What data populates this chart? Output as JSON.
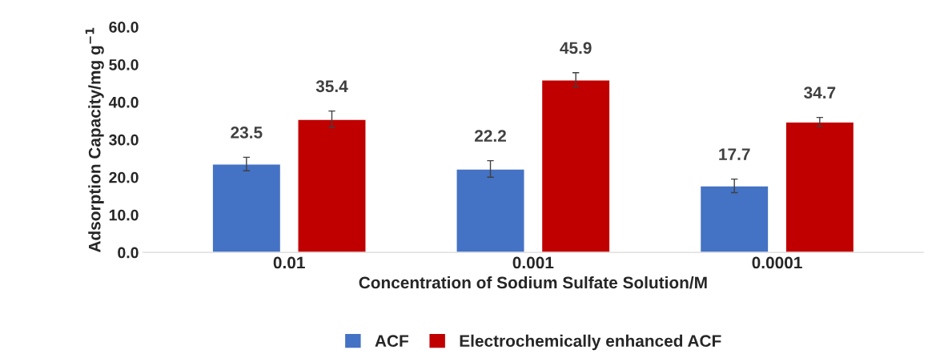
{
  "chart_data": {
    "type": "bar",
    "xlabel": "Concentration of Sodium Sulfate Solution/M",
    "ylabel": "Adsorption Capacity/mg g$^{−1}$",
    "categories": [
      "0.01",
      "0.001",
      "0.0001"
    ],
    "series": [
      {
        "name": "ACF",
        "color": "#4472c4",
        "values": [
          23.5,
          22.2,
          17.7
        ],
        "errors": [
          1.8,
          2.2,
          1.8
        ]
      },
      {
        "name": "Electrochemically enhanced ACF",
        "color": "#c00000",
        "values": [
          35.4,
          45.9,
          34.7
        ],
        "errors": [
          2.2,
          1.9,
          1.2
        ]
      }
    ],
    "ylim": [
      0,
      60
    ],
    "yticks": [
      {
        "value": 0,
        "label": "0.0"
      },
      {
        "value": 10,
        "label": "10.0"
      },
      {
        "value": 20,
        "label": "20.0"
      },
      {
        "value": 30,
        "label": "30.0"
      },
      {
        "value": 40,
        "label": "40.0"
      },
      {
        "value": 50,
        "label": "50.0"
      },
      {
        "value": 60,
        "label": "60.0"
      }
    ],
    "data_labels": true,
    "legend": "bottom",
    "grid": false
  }
}
